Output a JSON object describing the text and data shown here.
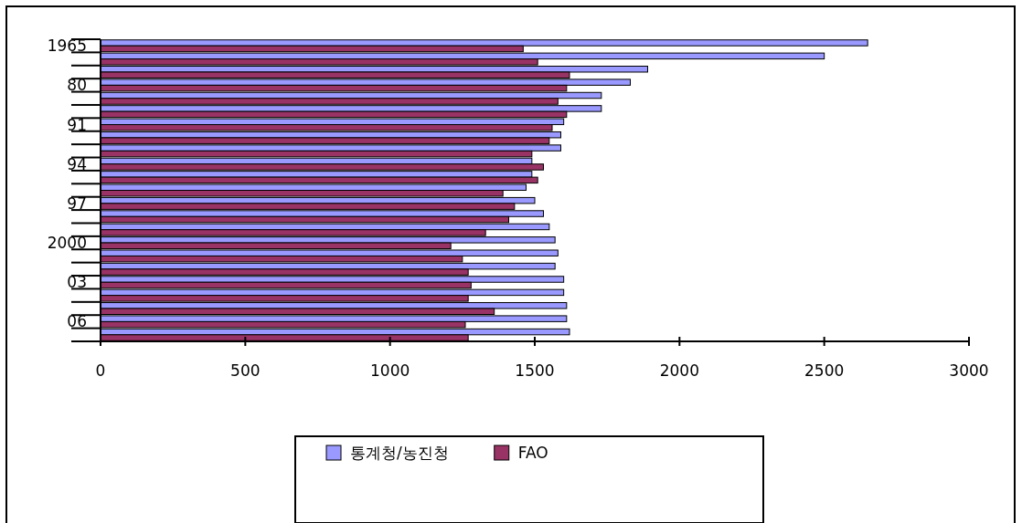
{
  "chart_data": {
    "type": "bar",
    "orientation": "horizontal",
    "categories": [
      "1965",
      null,
      null,
      "80",
      null,
      null,
      "91",
      null,
      null,
      "94",
      null,
      null,
      "97",
      null,
      null,
      "2000",
      null,
      null,
      "03",
      null,
      null,
      "06",
      null
    ],
    "series": [
      {
        "name": "통계청/농진청",
        "color": "#9999ff",
        "values": [
          2650,
          2500,
          1890,
          1830,
          1730,
          1730,
          1600,
          1590,
          1590,
          1490,
          1490,
          1470,
          1500,
          1530,
          1550,
          1570,
          1580,
          1570,
          1600,
          1600,
          1610,
          1610,
          1620
        ]
      },
      {
        "name": "FAO",
        "color": "#993366",
        "values": [
          1460,
          1510,
          1620,
          1610,
          1580,
          1610,
          1560,
          1550,
          1490,
          1530,
          1510,
          1390,
          1430,
          1410,
          1330,
          1210,
          1250,
          1270,
          1280,
          1270,
          1360,
          1260,
          1270
        ]
      }
    ],
    "xlim": [
      0,
      3000
    ],
    "xticks": [
      0,
      500,
      1000,
      1500,
      2000,
      2500,
      3000
    ],
    "legend": "bottom",
    "grid": false
  }
}
